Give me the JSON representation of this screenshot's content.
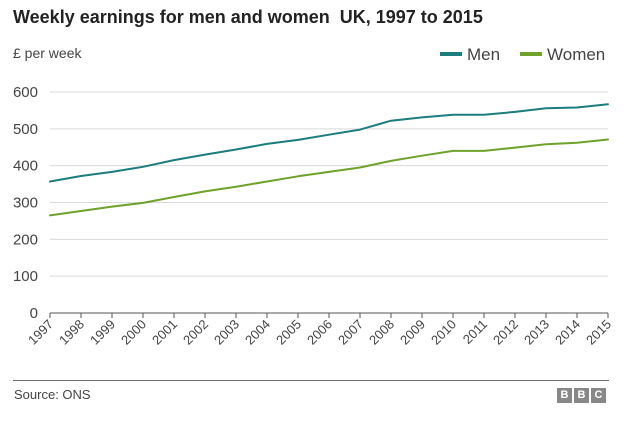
{
  "header": {
    "title": "Weekly earnings for men and women  UK, 1997 to 2015"
  },
  "footer": {
    "source": "Source: ONS",
    "logo_letters": [
      "B",
      "B",
      "C"
    ]
  },
  "colors": {
    "men": "#1b7d7d",
    "women": "#6fa22a",
    "grid": "#d9d9d9",
    "axis": "#555555"
  },
  "chart_data": {
    "type": "line",
    "title": "Weekly earnings for men and women  UK, 1997 to 2015",
    "ylabel": "£ per week",
    "xlabel": "",
    "ylim": [
      0,
      600
    ],
    "yticks": [
      0,
      100,
      200,
      300,
      400,
      500,
      600
    ],
    "grid": "horizontal",
    "legend_position": "top-right",
    "x": [
      "1997",
      "1998",
      "1999",
      "2000",
      "2001",
      "2002",
      "2003",
      "2004",
      "2005",
      "2006",
      "2007",
      "2008",
      "2009",
      "2010",
      "2011",
      "2012",
      "2013",
      "2014",
      "2015"
    ],
    "series": [
      {
        "name": "Men",
        "color": "#1b7d7d",
        "values": [
          357,
          372,
          383,
          397,
          415,
          430,
          444,
          459,
          470,
          484,
          498,
          522,
          531,
          538,
          538,
          546,
          556,
          558,
          567
        ]
      },
      {
        "name": "Women",
        "color": "#6fa22a",
        "values": [
          265,
          277,
          289,
          299,
          315,
          330,
          343,
          357,
          371,
          383,
          395,
          413,
          427,
          440,
          440,
          449,
          458,
          462,
          471
        ]
      }
    ]
  }
}
